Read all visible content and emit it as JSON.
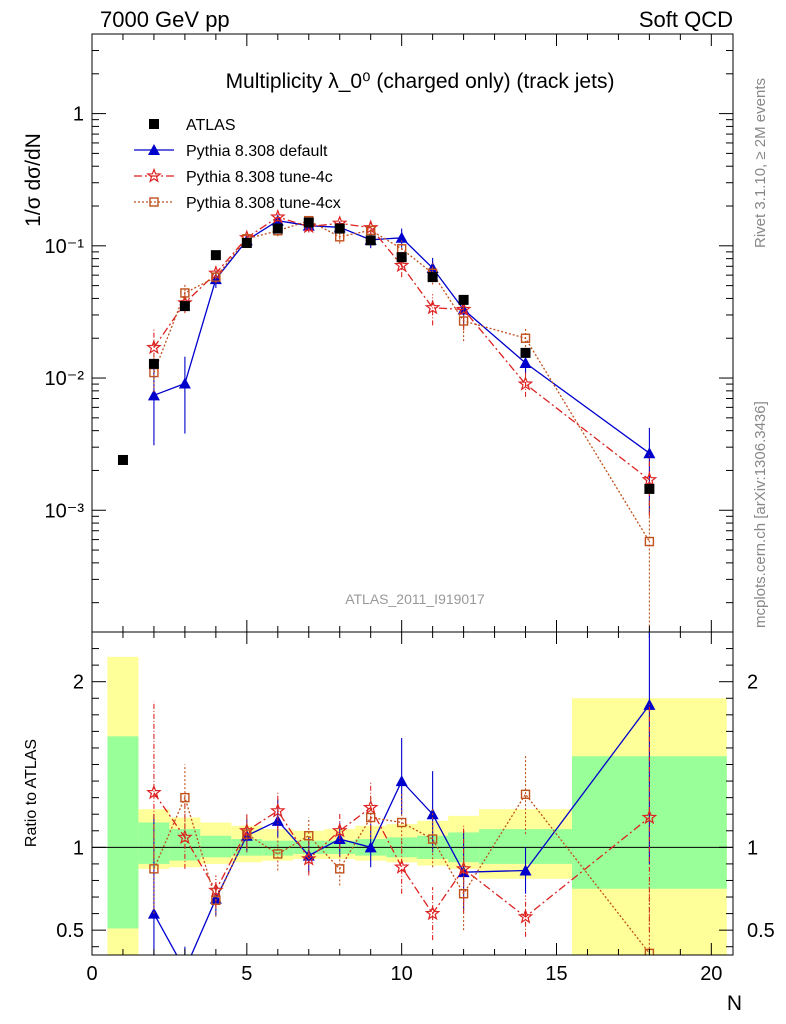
{
  "header": {
    "left": "7000 GeV pp",
    "right": "Soft QCD"
  },
  "side_labels": {
    "top": "Rivet 3.1.10, ≥ 2M events",
    "bottom": "mcplots.cern.ch [arXiv:1306.3436]"
  },
  "chart_data": {
    "type": "scatter",
    "title": "Multiplicity λ_0⁰ (charged only) (track jets)",
    "analysis_label": "ATLAS_2011_I919017",
    "xlabel": "N",
    "ylabel": "1/σ dσ/dN",
    "ratio_ylabel": "Ratio to ATLAS",
    "xlim": [
      0,
      20.7
    ],
    "ylim": [
      0.00012,
      4.0
    ],
    "yscale": "log",
    "ratio_ylim": [
      0.35,
      2.3
    ],
    "x_ticks": [
      0,
      5,
      10,
      15,
      20
    ],
    "y_tick_labels": [
      "1",
      "10⁻¹",
      "10⁻²",
      "10⁻³"
    ],
    "ratio_y_ticks": [
      0.5,
      1,
      2
    ],
    "legend_position": "top-left",
    "legend": [
      {
        "label": "ATLAS",
        "series": 0
      },
      {
        "label": "Pythia 8.308 default",
        "series": 1
      },
      {
        "label": "Pythia 8.308 tune-4c",
        "series": 2
      },
      {
        "label": "Pythia 8.308 tune-4cx",
        "series": 3
      }
    ],
    "reference": {
      "name": "ATLAS",
      "color": "#000000",
      "marker": "square",
      "x": [
        1,
        2,
        3,
        4,
        5,
        6,
        7,
        8,
        9,
        10,
        11,
        12,
        14,
        18
      ],
      "y": [
        0.0024,
        0.0128,
        0.035,
        0.085,
        0.105,
        0.135,
        0.15,
        0.135,
        0.11,
        0.082,
        0.058,
        0.039,
        0.0155,
        0.00145
      ],
      "ratio_bands": {
        "edges": [
          0.5,
          1.5,
          2.5,
          3.5,
          4.5,
          5.5,
          6.5,
          7.5,
          8.5,
          9.5,
          10.5,
          11.5,
          12.5,
          15.5,
          20.5
        ],
        "green_lo": [
          0.51,
          0.9,
          0.92,
          0.94,
          0.95,
          0.95,
          0.96,
          0.96,
          0.95,
          0.94,
          0.93,
          0.91,
          0.9,
          0.75
        ],
        "green_hi": [
          1.67,
          1.15,
          1.11,
          1.07,
          1.05,
          1.04,
          1.04,
          1.04,
          1.05,
          1.06,
          1.07,
          1.09,
          1.11,
          1.55
        ],
        "yellow_lo": [
          0.35,
          0.87,
          0.88,
          0.9,
          0.91,
          0.92,
          0.93,
          0.93,
          0.92,
          0.91,
          0.89,
          0.87,
          0.81,
          0.35
        ],
        "yellow_hi": [
          2.15,
          1.23,
          1.18,
          1.15,
          1.13,
          1.11,
          1.1,
          1.11,
          1.13,
          1.14,
          1.16,
          1.19,
          1.23,
          1.9
        ]
      }
    },
    "series": [
      {
        "name": "Pythia 8.308 default",
        "color": "#0000cc",
        "marker": "triangle",
        "dash": "",
        "x": [
          2,
          3,
          4,
          5,
          6,
          7,
          8,
          9,
          10,
          11,
          12,
          14,
          18
        ],
        "y": [
          0.0074,
          0.0091,
          0.056,
          0.11,
          0.155,
          0.142,
          0.138,
          0.111,
          0.115,
          0.068,
          0.033,
          0.013,
          0.0027
        ],
        "ylo": [
          0.0031,
          0.0038,
          0.048,
          0.1,
          0.142,
          0.128,
          0.124,
          0.096,
          0.097,
          0.056,
          0.024,
          0.0107,
          0.00095
        ],
        "yhi": [
          0.014,
          0.0145,
          0.065,
          0.122,
          0.17,
          0.158,
          0.152,
          0.126,
          0.135,
          0.081,
          0.041,
          0.0155,
          0.0042
        ],
        "ratio": [
          0.6,
          0.26,
          0.69,
          1.07,
          1.16,
          0.95,
          1.05,
          1.0,
          1.4,
          1.2,
          0.85,
          0.86,
          1.86
        ],
        "ratio_lo": [
          0.2,
          0.1,
          0.59,
          0.97,
          1.06,
          0.85,
          0.94,
          0.88,
          1.2,
          0.97,
          0.62,
          0.72,
          0.9
        ],
        "ratio_hi": [
          1.2,
          0.4,
          0.78,
          1.17,
          1.29,
          1.06,
          1.15,
          1.14,
          1.66,
          1.46,
          1.1,
          1.0,
          2.85
        ]
      },
      {
        "name": "Pythia 8.308 tune-4c",
        "color": "#dd2222",
        "marker": "star",
        "dash": "8,3,2,3",
        "x": [
          2,
          3,
          4,
          5,
          6,
          7,
          8,
          9,
          10,
          11,
          12,
          14,
          18
        ],
        "y": [
          0.017,
          0.037,
          0.062,
          0.115,
          0.165,
          0.14,
          0.148,
          0.137,
          0.071,
          0.034,
          0.033,
          0.009,
          0.0017
        ],
        "ylo": [
          0.012,
          0.031,
          0.056,
          0.104,
          0.152,
          0.126,
          0.134,
          0.122,
          0.058,
          0.025,
          0.023,
          0.0072,
          0.0009
        ],
        "yhi": [
          0.024,
          0.045,
          0.07,
          0.126,
          0.18,
          0.155,
          0.163,
          0.152,
          0.085,
          0.043,
          0.043,
          0.011,
          0.0026
        ],
        "ratio": [
          1.33,
          1.06,
          0.74,
          1.1,
          1.22,
          0.93,
          1.1,
          1.24,
          0.88,
          0.6,
          0.87,
          0.58,
          1.18
        ],
        "ratio_lo": [
          0.93,
          0.87,
          0.64,
          0.99,
          1.1,
          0.83,
          0.99,
          1.1,
          0.72,
          0.44,
          0.6,
          0.46,
          0.49
        ],
        "ratio_hi": [
          1.88,
          1.28,
          0.83,
          1.2,
          1.33,
          1.03,
          1.21,
          1.39,
          1.04,
          0.76,
          1.13,
          0.71,
          1.87
        ]
      },
      {
        "name": "Pythia 8.308 tune-4cx",
        "color": "#c0501c",
        "marker": "square-open",
        "dash": "2,2",
        "x": [
          2,
          3,
          4,
          5,
          6,
          7,
          8,
          9,
          10,
          11,
          12,
          14,
          18
        ],
        "y": [
          0.011,
          0.044,
          0.058,
          0.113,
          0.13,
          0.155,
          0.117,
          0.131,
          0.095,
          0.062,
          0.027,
          0.02,
          0.00058
        ],
        "ylo": [
          0.0078,
          0.037,
          0.052,
          0.102,
          0.118,
          0.14,
          0.104,
          0.118,
          0.081,
          0.051,
          0.019,
          0.016,
          0.0001
        ],
        "yhi": [
          0.015,
          0.052,
          0.065,
          0.124,
          0.142,
          0.17,
          0.13,
          0.145,
          0.11,
          0.074,
          0.036,
          0.024,
          0.0012
        ],
        "ratio": [
          0.87,
          1.3,
          0.68,
          1.08,
          0.96,
          1.07,
          0.87,
          1.18,
          1.15,
          1.05,
          0.72,
          1.32,
          0.36
        ],
        "ratio_lo": [
          0.6,
          1.11,
          0.58,
          0.97,
          0.86,
          0.96,
          0.77,
          1.05,
          0.97,
          0.88,
          0.5,
          1.08,
          0.05
        ],
        "ratio_hi": [
          1.14,
          1.5,
          0.78,
          1.19,
          1.06,
          1.18,
          0.97,
          1.31,
          1.33,
          1.23,
          0.95,
          1.56,
          0.8
        ]
      }
    ]
  }
}
